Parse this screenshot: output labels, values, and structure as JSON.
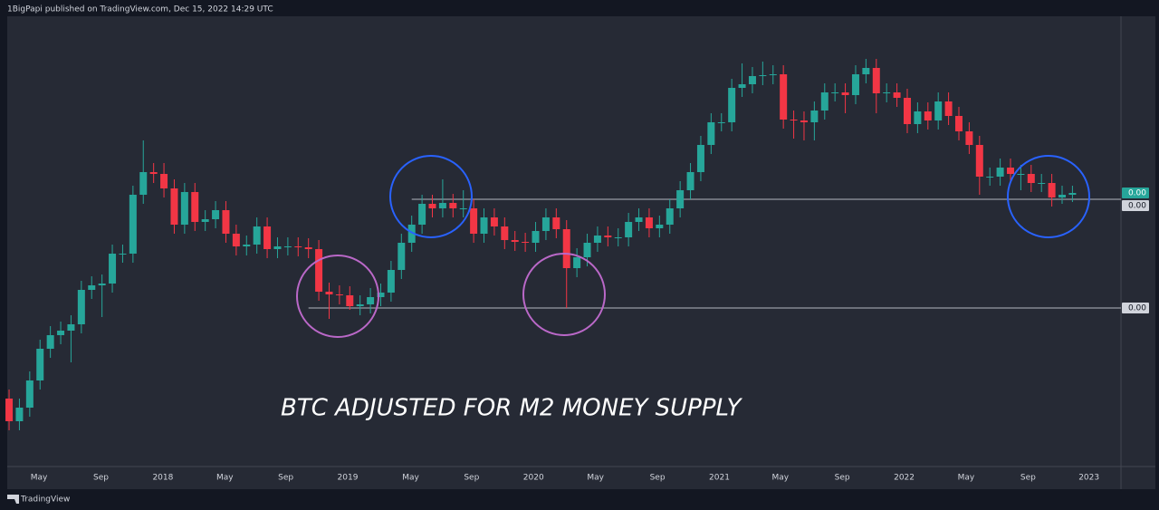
{
  "header": "1BigPapi published on TradingView.com, Dec 15, 2022 14:29 UTC",
  "footer": "TradingView",
  "chart_data": {
    "type": "candlestick",
    "annotation": "BTC ADJUSTED FOR M2 MONEY SUPPLY",
    "up_color": "#26a69a",
    "down_color": "#f23645",
    "xlim": [
      -0.88,
      107.7
    ],
    "ylim": [
      0,
      100
    ],
    "xticks": [
      {
        "value": 2.9,
        "label": "May"
      },
      {
        "value": 8.9,
        "label": "Sep"
      },
      {
        "value": 14.9,
        "label": "2018"
      },
      {
        "value": 20.9,
        "label": "May"
      },
      {
        "value": 26.8,
        "label": "Sep"
      },
      {
        "value": 32.8,
        "label": "2019"
      },
      {
        "value": 38.9,
        "label": "May"
      },
      {
        "value": 44.8,
        "label": "Sep"
      },
      {
        "value": 50.8,
        "label": "2020"
      },
      {
        "value": 56.8,
        "label": "May"
      },
      {
        "value": 62.8,
        "label": "Sep"
      },
      {
        "value": 68.8,
        "label": "2021"
      },
      {
        "value": 74.7,
        "label": "May"
      },
      {
        "value": 80.7,
        "label": "Sep"
      },
      {
        "value": 86.7,
        "label": "2022"
      },
      {
        "value": 92.7,
        "label": "May"
      },
      {
        "value": 98.7,
        "label": "Sep"
      },
      {
        "value": 104.6,
        "label": "2023"
      }
    ],
    "price_labels": [
      {
        "value": 60.4,
        "label": "0.00"
      },
      {
        "value": 59,
        "label": "0.00"
      },
      {
        "value": 35,
        "label": "0.00"
      }
    ],
    "hlines": [
      {
        "value": 59,
        "from": 39
      },
      {
        "value": 35,
        "from": 29
      }
    ],
    "open": [
      15,
      10,
      13,
      19,
      26,
      29,
      30,
      31.4,
      39,
      40,
      40.4,
      47,
      47,
      60,
      65,
      64.6,
      61.4,
      53.4,
      60.6,
      54,
      54.6,
      56.6,
      51.4,
      48.6,
      49,
      53,
      48,
      48.6,
      48.6,
      48.4,
      48,
      38.6,
      38,
      37.8,
      35.4,
      35.8,
      37.4,
      38.4,
      43.4,
      49.4,
      53.4,
      58,
      57,
      58.2,
      57,
      57,
      51.4,
      55,
      53,
      50,
      49.6,
      49.4,
      52,
      55,
      52.4,
      43.8,
      46.2,
      49.4,
      51,
      50.6,
      50.6,
      54,
      55,
      52.6,
      53.4,
      57,
      61,
      65,
      71,
      76,
      76,
      83.6,
      84.4,
      86.2,
      86.4,
      86.6,
      76.6,
      76.4,
      76,
      78.6,
      82.6,
      82.6,
      82,
      86.6,
      88,
      82.4,
      82.6,
      81.4,
      75.6,
      78.4,
      76.4,
      80.6,
      77.4,
      74,
      71,
      64,
      64,
      66,
      64.6,
      64.6,
      62.6,
      62.6,
      59.4,
      60
    ],
    "high": [
      17,
      15,
      21,
      28,
      31,
      32,
      33.4,
      41,
      42,
      42.4,
      49,
      49,
      62,
      72,
      67,
      67,
      63.4,
      62.6,
      62.6,
      56.6,
      58.6,
      58.6,
      53.4,
      51,
      55,
      55,
      50.6,
      50.6,
      50.6,
      50.4,
      50,
      40.6,
      40,
      39.8,
      37.8,
      39.4,
      40.4,
      45.4,
      51.4,
      55.4,
      60,
      60,
      63.4,
      60.2,
      61,
      59,
      57,
      57,
      55,
      52,
      51.6,
      54,
      57,
      57,
      54.4,
      48.2,
      51.4,
      53,
      53,
      52.6,
      56,
      57,
      57,
      55.4,
      59,
      63,
      67,
      73,
      78,
      78,
      85.6,
      89,
      88.2,
      89.4,
      88.6,
      88.6,
      78.6,
      78.4,
      80.6,
      84.6,
      84.6,
      84.6,
      88.6,
      90,
      90,
      84.6,
      84.6,
      83.4,
      80.4,
      80.4,
      82.6,
      82.6,
      79.4,
      76,
      73,
      66,
      68,
      68,
      66.6,
      66.6,
      64.6,
      64.6,
      62,
      62
    ],
    "low": [
      8,
      8,
      11,
      17,
      24,
      27,
      23,
      29.4,
      37,
      33,
      38.4,
      45,
      45,
      58,
      62.6,
      59.4,
      51.4,
      51.4,
      52,
      52,
      52.6,
      49.4,
      46.6,
      46.6,
      47,
      46,
      46,
      46.6,
      46.4,
      46,
      36.6,
      32.6,
      35.8,
      34.6,
      33.4,
      33.8,
      35.4,
      36.4,
      41.4,
      47.4,
      51.4,
      55,
      55,
      55,
      55,
      49.4,
      49.4,
      51,
      48,
      47.6,
      47.4,
      47.4,
      50,
      50.4,
      35,
      41.8,
      44.2,
      47.4,
      48.6,
      48.6,
      48.6,
      52,
      50.6,
      50.6,
      51.4,
      55,
      59,
      63,
      69,
      74,
      74,
      81.6,
      82.4,
      84.2,
      84.4,
      74.6,
      72.4,
      72,
      72,
      76.6,
      80.6,
      78,
      80,
      84.6,
      78,
      80.4,
      79.4,
      73.6,
      73.6,
      74.4,
      74.4,
      75.4,
      72,
      69,
      60,
      62,
      62,
      62.6,
      61,
      60.6,
      60.6,
      57.4,
      58,
      58.4
    ],
    "close": [
      10,
      13,
      19,
      26,
      29,
      30,
      31.4,
      39,
      40,
      40.4,
      47,
      47,
      60,
      65,
      64.6,
      61.4,
      53.4,
      60.6,
      54,
      54.6,
      56.6,
      51.4,
      48.6,
      49,
      53,
      48,
      48.6,
      48.6,
      48.4,
      48,
      38.6,
      38,
      37.8,
      35.4,
      35.8,
      37.4,
      38.4,
      43.4,
      49.4,
      53.4,
      58,
      57,
      58.2,
      57,
      57,
      51.4,
      55,
      53,
      50,
      49.6,
      49.4,
      52,
      55,
      52.4,
      43.8,
      46.2,
      49.4,
      51,
      50.6,
      50.6,
      54,
      55,
      52.6,
      53.4,
      57,
      61,
      65,
      71,
      76,
      76,
      83.6,
      84.4,
      86.2,
      86.4,
      86.6,
      76.6,
      76.4,
      76,
      78.6,
      82.6,
      82.6,
      82,
      86.6,
      88,
      82.4,
      82.6,
      81.4,
      75.6,
      78.4,
      76.4,
      80.6,
      77.4,
      74,
      71,
      64,
      64,
      66,
      64.6,
      64.6,
      62.6,
      62.6,
      59.4,
      60,
      60.4
    ]
  }
}
